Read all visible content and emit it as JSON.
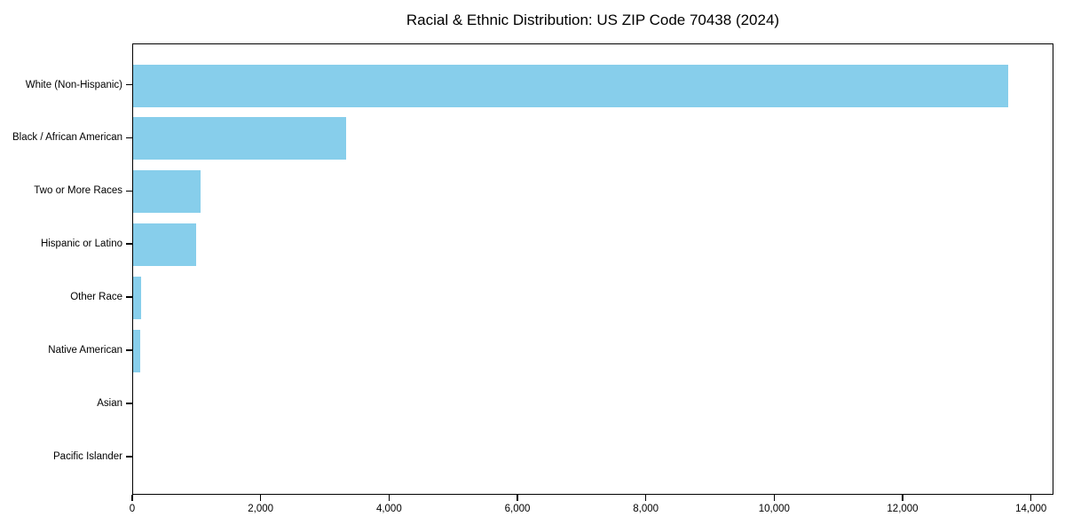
{
  "chart_data": {
    "type": "bar",
    "orientation": "horizontal",
    "title": "Racial & Ethnic Distribution: US ZIP Code 70438 (2024)",
    "categories": [
      "White (Non-Hispanic)",
      "Black / African American",
      "Two or More Races",
      "Hispanic or Latino",
      "Other Race",
      "Native American",
      "Asian",
      "Pacific Islander"
    ],
    "values": [
      13660,
      3330,
      1050,
      990,
      130,
      105,
      0,
      0
    ],
    "xlabel": "",
    "ylabel": "",
    "xlim": [
      0,
      14350
    ],
    "x_ticks": [
      0,
      2000,
      4000,
      6000,
      8000,
      10000,
      12000,
      14000
    ],
    "x_tick_labels": [
      "0",
      "2,000",
      "4,000",
      "6,000",
      "8,000",
      "10,000",
      "12,000",
      "14,000"
    ],
    "bar_color": "#87CEEB",
    "background_color": "#ffffff",
    "text_color": "#000000",
    "grid": false,
    "legend": null
  }
}
